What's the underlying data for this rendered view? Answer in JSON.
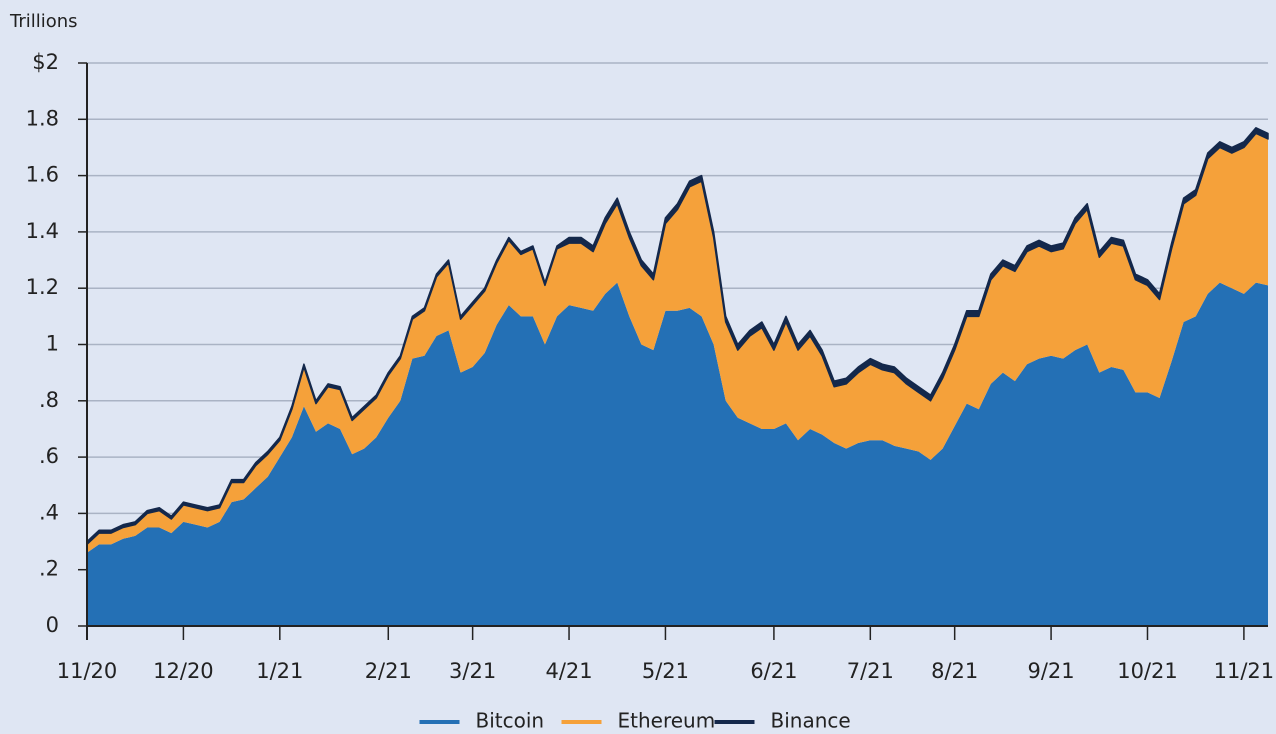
{
  "chart_data": {
    "type": "stacked_area",
    "y_axis_label": "Trillions",
    "categories": [
      "11/20",
      null,
      null,
      null,
      null,
      null,
      null,
      null,
      "12/20",
      null,
      null,
      null,
      null,
      null,
      null,
      null,
      "1/21",
      null,
      null,
      null,
      null,
      null,
      null,
      null,
      null,
      "2/21",
      null,
      null,
      null,
      null,
      null,
      null,
      "3/21",
      null,
      null,
      null,
      null,
      null,
      null,
      null,
      "4/21",
      null,
      null,
      null,
      null,
      null,
      null,
      null,
      "5/21",
      null,
      null,
      null,
      null,
      null,
      null,
      null,
      null,
      "6/21",
      null,
      null,
      null,
      null,
      null,
      null,
      null,
      "7/21",
      null,
      null,
      null,
      null,
      null,
      null,
      "8/21",
      null,
      null,
      null,
      null,
      null,
      null,
      null,
      "9/21",
      null,
      null,
      null,
      null,
      null,
      null,
      null,
      "10/21",
      null,
      null,
      null,
      null,
      null,
      null,
      null,
      "11/21",
      null,
      null
    ],
    "series": [
      {
        "name": "Bitcoin",
        "color": "#2470b5",
        "values": [
          0.26,
          0.29,
          0.29,
          0.31,
          0.32,
          0.35,
          0.35,
          0.33,
          0.37,
          0.36,
          0.35,
          0.37,
          0.44,
          0.45,
          0.49,
          0.53,
          0.6,
          0.67,
          0.78,
          0.69,
          0.72,
          0.7,
          0.61,
          0.63,
          0.67,
          0.74,
          0.8,
          0.95,
          0.96,
          1.03,
          1.05,
          0.9,
          0.92,
          0.97,
          1.07,
          1.14,
          1.1,
          1.1,
          1.0,
          1.1,
          1.14,
          1.13,
          1.12,
          1.18,
          1.22,
          1.1,
          1.0,
          0.98,
          1.12,
          1.12,
          1.13,
          1.1,
          1.0,
          0.8,
          0.74,
          0.72,
          0.7,
          0.7,
          0.72,
          0.66,
          0.7,
          0.68,
          0.65,
          0.63,
          0.65,
          0.66,
          0.66,
          0.64,
          0.63,
          0.62,
          0.59,
          0.63,
          0.71,
          0.79,
          0.77,
          0.86,
          0.9,
          0.87,
          0.93,
          0.95,
          0.96,
          0.95,
          0.98,
          1.0,
          0.9,
          0.92,
          0.91,
          0.83,
          0.83,
          0.81,
          0.94,
          1.08,
          1.1,
          1.18,
          1.22,
          1.2,
          1.18,
          1.22,
          1.21
        ]
      },
      {
        "name": "Ethereum",
        "color": "#f5a13a",
        "values": [
          0.03,
          0.04,
          0.04,
          0.04,
          0.04,
          0.05,
          0.06,
          0.05,
          0.06,
          0.06,
          0.06,
          0.05,
          0.07,
          0.06,
          0.08,
          0.08,
          0.06,
          0.1,
          0.14,
          0.1,
          0.13,
          0.14,
          0.12,
          0.14,
          0.14,
          0.15,
          0.15,
          0.14,
          0.16,
          0.21,
          0.24,
          0.19,
          0.22,
          0.22,
          0.22,
          0.23,
          0.22,
          0.24,
          0.21,
          0.24,
          0.22,
          0.23,
          0.21,
          0.25,
          0.28,
          0.28,
          0.28,
          0.25,
          0.31,
          0.36,
          0.43,
          0.48,
          0.38,
          0.28,
          0.24,
          0.31,
          0.36,
          0.28,
          0.36,
          0.32,
          0.33,
          0.28,
          0.2,
          0.23,
          0.25,
          0.27,
          0.25,
          0.26,
          0.23,
          0.21,
          0.21,
          0.25,
          0.27,
          0.31,
          0.33,
          0.37,
          0.38,
          0.39,
          0.4,
          0.4,
          0.37,
          0.39,
          0.45,
          0.48,
          0.41,
          0.44,
          0.44,
          0.4,
          0.38,
          0.35,
          0.4,
          0.42,
          0.43,
          0.48,
          0.48,
          0.48,
          0.52,
          0.53,
          0.52
        ]
      },
      {
        "name": "Binance",
        "color": "#14284b",
        "values": [
          0.01,
          0.01,
          0.01,
          0.01,
          0.01,
          0.01,
          0.01,
          0.01,
          0.01,
          0.01,
          0.01,
          0.01,
          0.01,
          0.01,
          0.01,
          0.01,
          0.01,
          0.01,
          0.01,
          0.01,
          0.01,
          0.01,
          0.01,
          0.01,
          0.01,
          0.01,
          0.01,
          0.01,
          0.01,
          0.01,
          0.01,
          0.01,
          0.01,
          0.01,
          0.01,
          0.01,
          0.01,
          0.01,
          0.01,
          0.01,
          0.02,
          0.02,
          0.02,
          0.02,
          0.02,
          0.02,
          0.02,
          0.02,
          0.02,
          0.02,
          0.02,
          0.02,
          0.02,
          0.02,
          0.02,
          0.02,
          0.02,
          0.02,
          0.02,
          0.02,
          0.02,
          0.02,
          0.02,
          0.02,
          0.02,
          0.02,
          0.02,
          0.02,
          0.02,
          0.02,
          0.02,
          0.02,
          0.02,
          0.02,
          0.02,
          0.02,
          0.02,
          0.02,
          0.02,
          0.02,
          0.02,
          0.02,
          0.02,
          0.02,
          0.02,
          0.02,
          0.02,
          0.02,
          0.02,
          0.02,
          0.02,
          0.02,
          0.02,
          0.02,
          0.02,
          0.02,
          0.02,
          0.02,
          0.02
        ]
      }
    ],
    "ylim": [
      0,
      2
    ],
    "yticks": [
      0,
      {
        "value": 0.2,
        "label": ".2"
      },
      {
        "value": 0.4,
        "label": ".4"
      },
      {
        "value": 0.6,
        "label": ".6"
      },
      {
        "value": 0.8,
        "label": ".8"
      },
      1,
      {
        "value": 1.2,
        "label": "1.2"
      },
      {
        "value": 1.4,
        "label": "1.4"
      },
      {
        "value": 1.6,
        "label": "1.6"
      },
      {
        "value": 1.8,
        "label": "1.8"
      },
      {
        "value": 2,
        "label": "$2"
      }
    ],
    "grid": true,
    "legend": "bottom"
  }
}
